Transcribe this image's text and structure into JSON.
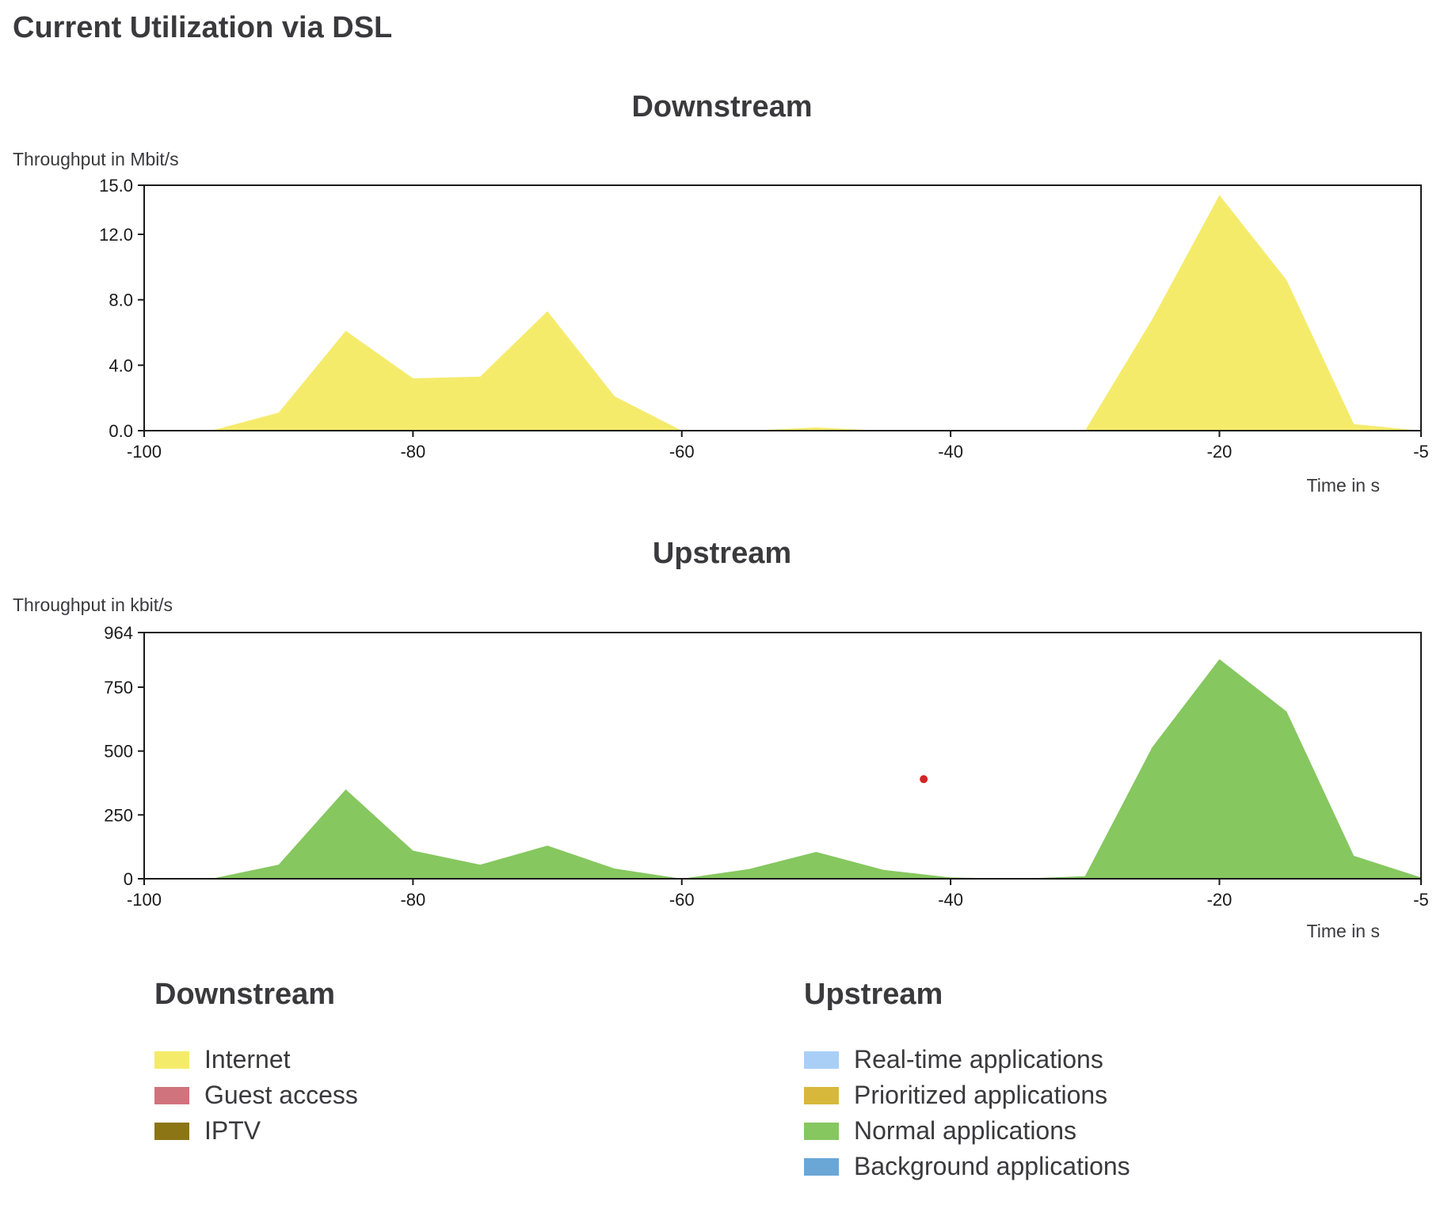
{
  "page": {
    "title": "Current Utilization via DSL"
  },
  "chart_data": [
    {
      "type": "area",
      "title": "Downstream",
      "ylabel": "Throughput in Mbit/s",
      "xlabel": "Time in s",
      "xlim": [
        -100,
        -5
      ],
      "ylim": [
        0,
        15
      ],
      "x_ticks": [
        "-100",
        "-80",
        "-60",
        "-40",
        "-20",
        "-5"
      ],
      "x_tick_values": [
        -100,
        -80,
        -60,
        -40,
        -20,
        -5
      ],
      "y_ticks": [
        "0.0",
        "4.0",
        "8.0",
        "12.0",
        "15.0"
      ],
      "y_tick_values": [
        0,
        4,
        8,
        12,
        15
      ],
      "grid": false,
      "series": [
        {
          "color": "#f5eb6b",
          "x": [
            -100,
            -95,
            -90,
            -85,
            -80,
            -75,
            -70,
            -65,
            -60,
            -55,
            -50,
            -45,
            -40,
            -35,
            -30,
            -25,
            -20,
            -15,
            -10,
            -5
          ],
          "y": [
            0,
            0,
            1.1,
            6.1,
            3.2,
            3.3,
            7.3,
            2.1,
            0,
            0,
            0.2,
            0,
            0,
            0,
            0,
            6.8,
            14.4,
            9.2,
            0.4,
            0
          ]
        }
      ]
    },
    {
      "type": "area",
      "title": "Upstream",
      "ylabel": "Throughput in kbit/s",
      "xlabel": "Time in s",
      "xlim": [
        -100,
        -5
      ],
      "ylim": [
        0,
        964
      ],
      "x_ticks": [
        "-100",
        "-80",
        "-60",
        "-40",
        "-20",
        "-5"
      ],
      "x_tick_values": [
        -100,
        -80,
        -60,
        -40,
        -20,
        -5
      ],
      "y_ticks": [
        "0",
        "250",
        "500",
        "750",
        "964"
      ],
      "y_tick_values": [
        0,
        250,
        500,
        750,
        964
      ],
      "grid": false,
      "series": [
        {
          "color": "#86c75f",
          "x": [
            -100,
            -95,
            -90,
            -85,
            -80,
            -75,
            -70,
            -65,
            -60,
            -55,
            -50,
            -45,
            -40,
            -35,
            -30,
            -25,
            -20,
            -15,
            -10,
            -5
          ],
          "y": [
            0,
            0,
            55,
            350,
            110,
            55,
            130,
            40,
            0,
            38,
            105,
            35,
            5,
            0,
            10,
            515,
            860,
            655,
            90,
            5
          ]
        }
      ],
      "annotations": [
        {
          "kind": "dot",
          "color": "#d42424",
          "x": -42,
          "y": 390
        }
      ]
    }
  ],
  "legends": {
    "downstream": {
      "heading": "Downstream",
      "items": [
        {
          "label": "Internet",
          "color": "#f5eb6b"
        },
        {
          "label": "Guest access",
          "color": "#d0737c"
        },
        {
          "label": "IPTV",
          "color": "#8c7514"
        }
      ]
    },
    "upstream": {
      "heading": "Upstream",
      "items": [
        {
          "label": "Real-time applications",
          "color": "#a9cff7"
        },
        {
          "label": "Prioritized applications",
          "color": "#d7b83a"
        },
        {
          "label": "Normal applications",
          "color": "#86c75f"
        },
        {
          "label": "Background applications",
          "color": "#6aa6d6"
        }
      ]
    }
  }
}
